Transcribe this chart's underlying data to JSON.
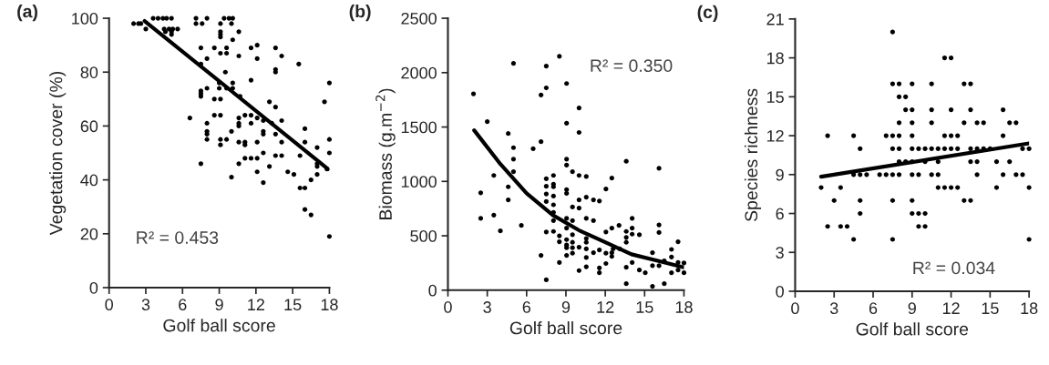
{
  "chart_data": [
    {
      "type": "scatter",
      "title": "(a)",
      "xlabel": "Golf ball score",
      "ylabel": "Vegetation cover (%)",
      "annotations": [
        "R² = 0.453"
      ],
      "xlim": [
        0,
        18
      ],
      "xticks": [
        0,
        3,
        6,
        9,
        12,
        15,
        18
      ],
      "ylim": [
        0,
        100
      ],
      "yticks": [
        0,
        20,
        40,
        60,
        80,
        100
      ],
      "grid": false,
      "legend": false,
      "marker": "circle",
      "series": [
        {
          "type": "scatter",
          "color": "#000000",
          "x": [
            3.6,
            4.0,
            4.4,
            4.7,
            5.1,
            7.1,
            8.0,
            9.4,
            9.8,
            10.1,
            2.0,
            2.4,
            2.6,
            7.1,
            7.6,
            9.1,
            10.0,
            3.0,
            4.5,
            4.9,
            5.2,
            5.6,
            4.6,
            5.1,
            9.1,
            10.6,
            5.1,
            9.1,
            9.1,
            10.1,
            12.1,
            7.5,
            8.6,
            9.6,
            11.6,
            13.6,
            9.6,
            9.1,
            10.6,
            14.1,
            12.1,
            8.0,
            15.5,
            7.5,
            13.6,
            13.6,
            9.5,
            11.6,
            18.0,
            9.0,
            10.1,
            8.0,
            9.0,
            9.6,
            10.1,
            7.5,
            7.5,
            7.5,
            10.7,
            8.6,
            9.1,
            17.6,
            13.1,
            13.6,
            9.1,
            8.6,
            11.1,
            11.6,
            6.6,
            10.6,
            12.1,
            12.6,
            14.1,
            8.0,
            10.6,
            11.6,
            13.3,
            10.6,
            16.0,
            8.0,
            10.0,
            12.6,
            8.0,
            12.6,
            13.6,
            8.0,
            9.1,
            9.6,
            18.0,
            10.6,
            11.1,
            12.1,
            14.1,
            16.0,
            9.1,
            11.1,
            17.0,
            12.6,
            18.0,
            13.6,
            14.1,
            15.6,
            11.1,
            11.6,
            12.1,
            7.5,
            10.6,
            17.0,
            13.1,
            17.0,
            17.8,
            12.1,
            14.6,
            15.1,
            17.0,
            10.0,
            16.5,
            12.6,
            15.6,
            16.0,
            16.0,
            16.5,
            18.0
          ],
          "values": [
            100,
            100,
            100,
            100,
            100,
            100,
            100,
            100,
            100,
            100,
            98,
            98,
            98,
            98,
            98,
            98,
            98,
            96,
            96,
            96,
            96,
            96,
            95,
            95,
            95,
            95,
            94,
            94,
            93,
            92,
            90,
            89,
            89,
            89,
            89,
            89,
            87,
            87,
            86,
            86,
            85,
            85,
            83,
            83,
            81,
            80,
            80,
            77,
            76,
            76,
            76,
            74,
            74,
            74,
            74,
            73,
            72,
            71,
            71,
            70,
            70,
            69,
            69,
            67,
            64,
            64,
            64,
            64,
            63,
            63,
            63,
            62,
            62,
            61,
            61,
            61,
            61,
            60,
            59,
            58,
            58,
            58,
            57,
            57,
            57,
            55,
            55,
            55,
            55,
            54,
            54,
            54,
            54,
            54,
            53,
            53,
            52,
            50,
            50,
            49,
            49,
            49,
            48,
            48,
            48,
            46,
            46,
            46,
            45,
            45,
            44,
            43,
            43,
            42,
            42,
            41,
            40,
            39,
            37,
            37,
            29,
            27,
            19
          ]
        },
        {
          "type": "line",
          "color": "#000000",
          "marker": "none",
          "x": [
            2.9,
            17.9
          ],
          "values": [
            99,
            44
          ]
        }
      ]
    },
    {
      "type": "scatter",
      "title": "(b)",
      "xlabel": "Golf ball score",
      "ylabel": "Biomass (g.m$^{−2}$)",
      "annotations": [
        "R² = 0.350"
      ],
      "xlim": [
        0,
        18
      ],
      "xticks": [
        0,
        3,
        6,
        9,
        12,
        15,
        18
      ],
      "ylim": [
        0,
        2500
      ],
      "yticks": [
        0,
        500,
        1000,
        1500,
        2000,
        2500
      ],
      "grid": false,
      "legend": false,
      "marker": "circle",
      "series": [
        {
          "type": "scatter",
          "color": "#000000",
          "x": [
            1.95,
            5.0,
            7.5,
            8.5,
            7.5,
            7.1,
            9.05,
            10.0,
            9.05,
            10.0,
            3.0,
            4.6,
            5.0,
            6.5,
            7.1,
            5.0,
            5.0,
            3.5,
            4.6,
            4.6,
            2.5,
            2.5,
            3.5,
            4.0,
            5.6,
            7.1,
            7.5,
            7.5,
            7.5,
            7.5,
            7.5,
            7.5,
            8.05,
            8.05,
            8.05,
            8.05,
            8.05,
            8.05,
            8.05,
            8.05,
            8.5,
            8.5,
            8.5,
            9.05,
            9.05,
            9.05,
            9.05,
            9.05,
            9.05,
            9.05,
            9.05,
            9.05,
            9.05,
            9.5,
            9.5,
            9.5,
            9.5,
            9.5,
            9.5,
            9.5,
            10.0,
            10.0,
            10.0,
            10.0,
            10.0,
            10.55,
            10.55,
            10.55,
            10.55,
            10.55,
            10.55,
            10.55,
            10.55,
            11.1,
            11.1,
            11.1,
            11.55,
            11.55,
            11.55,
            11.55,
            12.05,
            12.05,
            12.05,
            12.05,
            12.5,
            12.5,
            12.5,
            12.5,
            13.05,
            13.6,
            13.6,
            13.6,
            13.6,
            13.6,
            13.6,
            14.05,
            14.05,
            14.05,
            14.05,
            14.6,
            14.6,
            15.05,
            15.6,
            15.6,
            15.6,
            16.1,
            16.1,
            16.1,
            16.1,
            16.5,
            16.5,
            17.05,
            17.05,
            17.05,
            17.55,
            17.55,
            17.55,
            18.0,
            18.0,
            13.1,
            12.6
          ],
          "values": [
            1805,
            2085,
            2060,
            2150,
            1860,
            1795,
            1900,
            1675,
            1535,
            1450,
            1550,
            1440,
            1310,
            1300,
            1365,
            1205,
            1090,
            1055,
            950,
            830,
            895,
            660,
            690,
            545,
            595,
            320,
            95,
            1025,
            955,
            885,
            815,
            535,
            1055,
            975,
            950,
            865,
            785,
            715,
            640,
            540,
            500,
            445,
            255,
            1205,
            1150,
            925,
            890,
            660,
            570,
            465,
            415,
            390,
            320,
            1090,
            765,
            640,
            510,
            440,
            390,
            340,
            1055,
            830,
            755,
            180,
            395,
            1045,
            855,
            660,
            475,
            440,
            380,
            300,
            215,
            830,
            640,
            345,
            820,
            370,
            205,
            160,
            930,
            535,
            340,
            245,
            1030,
            570,
            345,
            310,
            595,
            1185,
            540,
            485,
            440,
            210,
            60,
            660,
            570,
            515,
            255,
            510,
            185,
            160,
            345,
            225,
            35,
            1120,
            600,
            530,
            225,
            270,
            60,
            375,
            305,
            160,
            445,
            255,
            185,
            250,
            160,
            380,
            380
          ]
        },
        {
          "type": "line",
          "color": "#000000",
          "marker": "none",
          "x": [
            2,
            4,
            6,
            8,
            10,
            12,
            14,
            16,
            18
          ],
          "values": [
            1470,
            1160,
            890,
            690,
            550,
            440,
            330,
            270,
            210
          ]
        }
      ]
    },
    {
      "type": "scatter",
      "title": "(c)",
      "xlabel": "Golf ball score",
      "ylabel": "Species richness",
      "annotations": [
        "R² = 0.034"
      ],
      "xlim": [
        0,
        18
      ],
      "xticks": [
        0,
        3,
        6,
        9,
        12,
        15,
        18
      ],
      "ylim": [
        0,
        21
      ],
      "yticks": [
        0,
        3,
        6,
        9,
        12,
        15,
        18,
        21
      ],
      "grid": false,
      "legend": false,
      "marker": "circle",
      "series": [
        {
          "type": "scatter",
          "color": "#000000",
          "x": [
            7.5,
            11.5,
            12,
            7.5,
            8,
            9,
            10.5,
            13,
            13.5,
            8,
            8.5,
            8.5,
            9,
            10.5,
            12,
            13.5,
            16,
            8,
            9,
            10.5,
            13,
            14,
            14.5,
            16.5,
            17,
            2.5,
            4.5,
            7,
            7.5,
            8,
            9,
            11.5,
            12,
            12.5,
            16,
            5,
            7.5,
            8,
            9,
            9.5,
            10,
            10.5,
            11,
            11.5,
            12,
            12.5,
            13.5,
            14,
            14.5,
            15,
            17.5,
            18,
            8,
            8.5,
            9,
            10,
            11,
            13.5,
            14,
            15.5,
            16.5,
            4.5,
            5,
            5.5,
            6.5,
            7,
            7.5,
            8,
            9,
            9.5,
            10.5,
            11,
            14,
            16,
            17,
            17.5,
            2,
            3.5,
            11,
            11.5,
            12,
            12.5,
            15.5,
            18,
            3,
            5,
            7.5,
            9,
            13,
            13.5,
            5,
            9,
            9.5,
            10,
            2.5,
            3.5,
            4,
            9.5,
            10,
            4.5,
            7.5,
            18
          ],
          "values": [
            20,
            18,
            18,
            16,
            16,
            16,
            16,
            16,
            16,
            15,
            15,
            14,
            14,
            14,
            14,
            14,
            14,
            13,
            13,
            13,
            13,
            13,
            13,
            13,
            13,
            12,
            12,
            12,
            12,
            12,
            12,
            12,
            12,
            12,
            12,
            11,
            11,
            11,
            11,
            11,
            11,
            11,
            11,
            11,
            11,
            11,
            11,
            11,
            11,
            11,
            11,
            11,
            10,
            10,
            10,
            10,
            10,
            10,
            10,
            10,
            10,
            9,
            9,
            9,
            9,
            9,
            9,
            9,
            9,
            9,
            9,
            9,
            9,
            9,
            9,
            9,
            8,
            8,
            8,
            8,
            8,
            8,
            8,
            8,
            7,
            7,
            7,
            7,
            7,
            7,
            6,
            6,
            6,
            6,
            5,
            5,
            5,
            5,
            5,
            4,
            4,
            4
          ]
        },
        {
          "type": "line",
          "color": "#000000",
          "marker": "none",
          "x": [
            2,
            18
          ],
          "values": [
            8.84,
            11.41
          ]
        }
      ]
    }
  ]
}
